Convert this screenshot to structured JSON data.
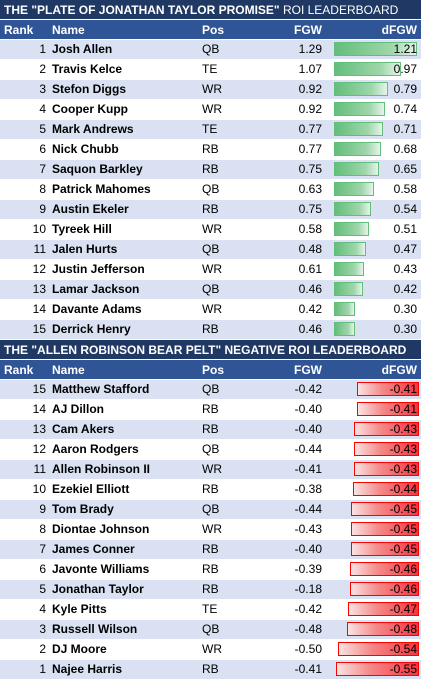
{
  "positive_board": {
    "title_bold": "THE \"PLATE OF JONATHAN TAYLOR PROMISE\"",
    "title_rest": " ROI LEADERBOARD",
    "headers": {
      "rank": "Rank",
      "name": "Name",
      "pos": "Pos",
      "fgw": "FGW",
      "dfgw": "dFGW"
    },
    "scale_max": 1.21,
    "rows": [
      {
        "rank": "1",
        "name": "Josh Allen",
        "pos": "QB",
        "fgw": "1.29",
        "dfgw": "1.21",
        "dfgw_value": 1.21
      },
      {
        "rank": "2",
        "name": "Travis Kelce",
        "pos": "TE",
        "fgw": "1.07",
        "dfgw": "0.97",
        "dfgw_value": 0.97
      },
      {
        "rank": "3",
        "name": "Stefon Diggs",
        "pos": "WR",
        "fgw": "0.92",
        "dfgw": "0.79",
        "dfgw_value": 0.79
      },
      {
        "rank": "4",
        "name": "Cooper Kupp",
        "pos": "WR",
        "fgw": "0.92",
        "dfgw": "0.74",
        "dfgw_value": 0.74
      },
      {
        "rank": "5",
        "name": "Mark Andrews",
        "pos": "TE",
        "fgw": "0.77",
        "dfgw": "0.71",
        "dfgw_value": 0.71
      },
      {
        "rank": "6",
        "name": "Nick Chubb",
        "pos": "RB",
        "fgw": "0.77",
        "dfgw": "0.68",
        "dfgw_value": 0.68
      },
      {
        "rank": "7",
        "name": "Saquon Barkley",
        "pos": "RB",
        "fgw": "0.75",
        "dfgw": "0.65",
        "dfgw_value": 0.65
      },
      {
        "rank": "8",
        "name": "Patrick Mahomes",
        "pos": "QB",
        "fgw": "0.63",
        "dfgw": "0.58",
        "dfgw_value": 0.58
      },
      {
        "rank": "9",
        "name": "Austin Ekeler",
        "pos": "RB",
        "fgw": "0.75",
        "dfgw": "0.54",
        "dfgw_value": 0.54
      },
      {
        "rank": "10",
        "name": "Tyreek Hill",
        "pos": "WR",
        "fgw": "0.58",
        "dfgw": "0.51",
        "dfgw_value": 0.51
      },
      {
        "rank": "11",
        "name": "Jalen Hurts",
        "pos": "QB",
        "fgw": "0.48",
        "dfgw": "0.47",
        "dfgw_value": 0.47
      },
      {
        "rank": "12",
        "name": "Justin Jefferson",
        "pos": "WR",
        "fgw": "0.61",
        "dfgw": "0.43",
        "dfgw_value": 0.43
      },
      {
        "rank": "13",
        "name": "Lamar Jackson",
        "pos": "QB",
        "fgw": "0.46",
        "dfgw": "0.42",
        "dfgw_value": 0.42
      },
      {
        "rank": "14",
        "name": "Davante Adams",
        "pos": "WR",
        "fgw": "0.42",
        "dfgw": "0.30",
        "dfgw_value": 0.3
      },
      {
        "rank": "15",
        "name": "Derrick Henry",
        "pos": "RB",
        "fgw": "0.46",
        "dfgw": "0.30",
        "dfgw_value": 0.3
      }
    ]
  },
  "negative_board": {
    "title_bold": "THE \"ALLEN ROBINSON BEAR PELT\" NEGATIVE ROI LEADERBOARD",
    "title_rest": "",
    "headers": {
      "rank": "Rank",
      "name": "Name",
      "pos": "Pos",
      "fgw": "FGW",
      "dfgw": "dFGW"
    },
    "scale_max": 0.55,
    "rows": [
      {
        "rank": "15",
        "name": "Matthew Stafford",
        "pos": "QB",
        "fgw": "-0.42",
        "dfgw": "-0.41",
        "dfgw_value": -0.41
      },
      {
        "rank": "14",
        "name": "AJ Dillon",
        "pos": "RB",
        "fgw": "-0.40",
        "dfgw": "-0.41",
        "dfgw_value": -0.41
      },
      {
        "rank": "13",
        "name": "Cam Akers",
        "pos": "RB",
        "fgw": "-0.40",
        "dfgw": "-0.43",
        "dfgw_value": -0.43
      },
      {
        "rank": "12",
        "name": "Aaron Rodgers",
        "pos": "QB",
        "fgw": "-0.44",
        "dfgw": "-0.43",
        "dfgw_value": -0.43
      },
      {
        "rank": "11",
        "name": "Allen Robinson II",
        "pos": "WR",
        "fgw": "-0.41",
        "dfgw": "-0.43",
        "dfgw_value": -0.43
      },
      {
        "rank": "10",
        "name": "Ezekiel Elliott",
        "pos": "RB",
        "fgw": "-0.38",
        "dfgw": "-0.44",
        "dfgw_value": -0.44
      },
      {
        "rank": "9",
        "name": "Tom Brady",
        "pos": "QB",
        "fgw": "-0.44",
        "dfgw": "-0.45",
        "dfgw_value": -0.45
      },
      {
        "rank": "8",
        "name": "Diontae Johnson",
        "pos": "WR",
        "fgw": "-0.43",
        "dfgw": "-0.45",
        "dfgw_value": -0.45
      },
      {
        "rank": "7",
        "name": "James Conner",
        "pos": "RB",
        "fgw": "-0.40",
        "dfgw": "-0.45",
        "dfgw_value": -0.45
      },
      {
        "rank": "6",
        "name": "Javonte Williams",
        "pos": "RB",
        "fgw": "-0.39",
        "dfgw": "-0.46",
        "dfgw_value": -0.46
      },
      {
        "rank": "5",
        "name": "Jonathan Taylor",
        "pos": "RB",
        "fgw": "-0.18",
        "dfgw": "-0.46",
        "dfgw_value": -0.46
      },
      {
        "rank": "4",
        "name": "Kyle Pitts",
        "pos": "TE",
        "fgw": "-0.42",
        "dfgw": "-0.47",
        "dfgw_value": -0.47
      },
      {
        "rank": "3",
        "name": "Russell Wilson",
        "pos": "QB",
        "fgw": "-0.48",
        "dfgw": "-0.48",
        "dfgw_value": -0.48
      },
      {
        "rank": "2",
        "name": "DJ Moore",
        "pos": "WR",
        "fgw": "-0.50",
        "dfgw": "-0.54",
        "dfgw_value": -0.54
      },
      {
        "rank": "1",
        "name": "Najee Harris",
        "pos": "RB",
        "fgw": "-0.41",
        "dfgw": "-0.55",
        "dfgw_value": -0.55
      }
    ]
  },
  "colors": {
    "banner_bg": "#1f3864",
    "header_bg": "#2f5597",
    "row_alt_bg": "#d9e1f2",
    "positive_bar": "#63be7b",
    "negative_bar": "#f8333f"
  }
}
